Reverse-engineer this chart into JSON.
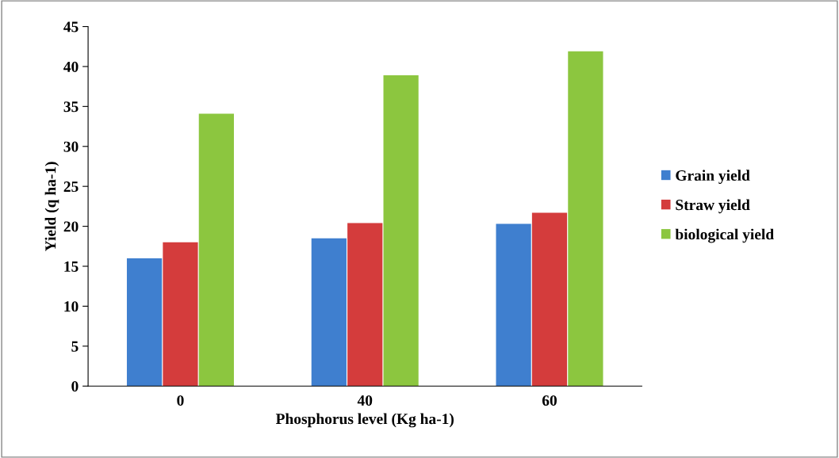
{
  "chart_data": {
    "type": "bar",
    "xlabel": "Phosphorus level (Kg ha-1)",
    "ylabel": "Yield (q ha-1)",
    "categories": [
      "0",
      "40",
      "60"
    ],
    "series": [
      {
        "name": "Grain yield",
        "color": "#3f7fcf",
        "values": [
          16,
          18.5,
          20.3
        ]
      },
      {
        "name": "Straw yield",
        "color": "#d43c3c",
        "values": [
          18,
          20.4,
          21.7
        ]
      },
      {
        "name": "biological yield",
        "color": "#8cc63f",
        "values": [
          34.1,
          38.9,
          41.9
        ]
      }
    ],
    "ylim": [
      0,
      45
    ],
    "yticks": [
      0,
      5,
      10,
      15,
      20,
      25,
      30,
      35,
      40,
      45
    ],
    "grid": false,
    "legend": "right"
  }
}
